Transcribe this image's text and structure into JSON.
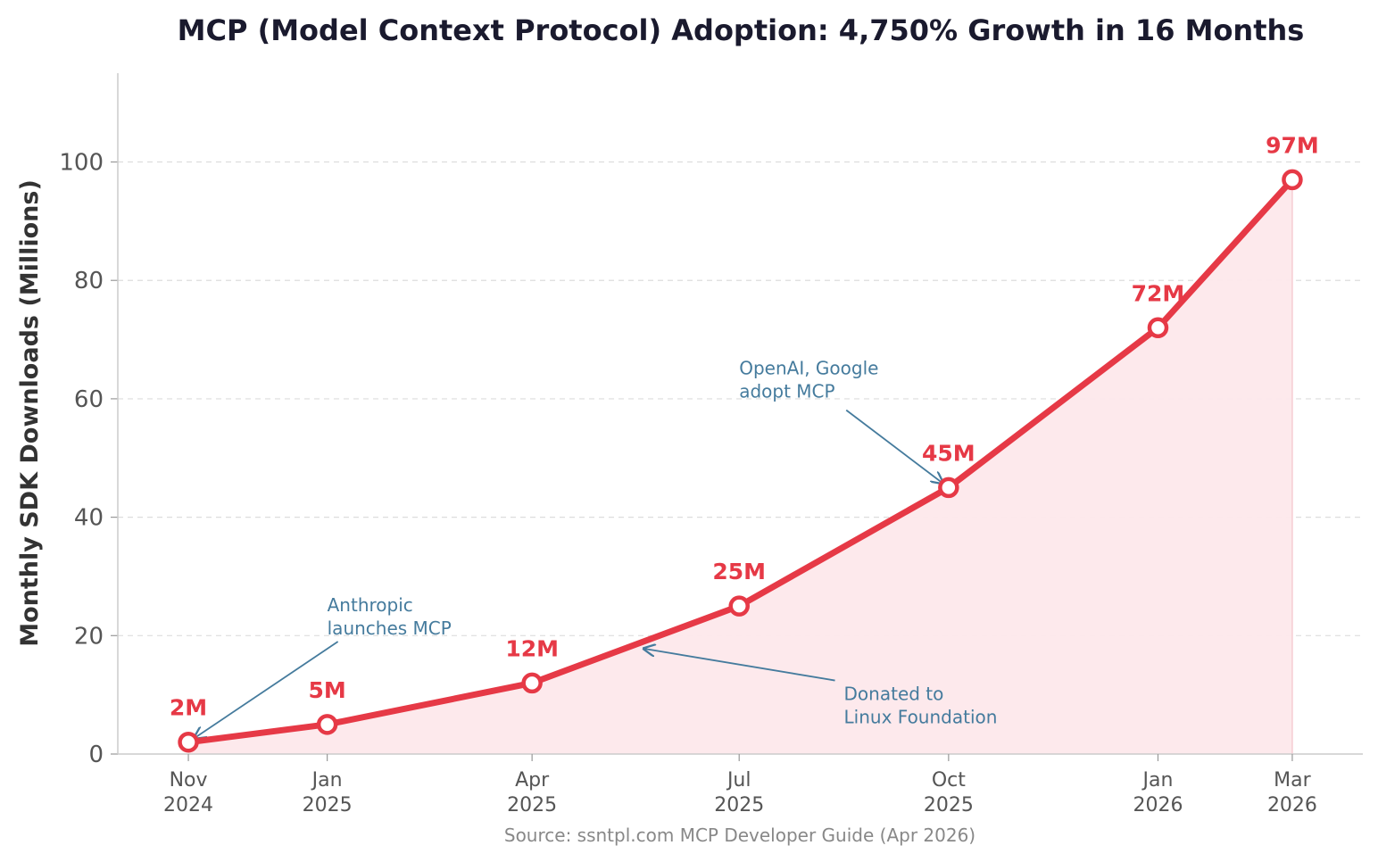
{
  "chart_data": {
    "type": "line",
    "title": "MCP (Model Context Protocol) Adoption: 4,750% Growth in 16 Months",
    "ylabel": "Monthly SDK Downloads (Millions)",
    "xlabel": "",
    "ylim": [
      0,
      115
    ],
    "yticks": [
      0,
      20,
      40,
      60,
      80,
      100
    ],
    "xlim": [
      "2024-10-01",
      "2026-04-01"
    ],
    "grid": "horizontal dashed",
    "color": "#e63946",
    "fill_color": "#fde8eb",
    "annotation_color": "#457b9d",
    "xticks": [
      {
        "date": "2024-11-01",
        "line1": "Nov",
        "line2": "2024"
      },
      {
        "date": "2025-01-01",
        "line1": "Jan",
        "line2": "2025"
      },
      {
        "date": "2025-04-01",
        "line1": "Apr",
        "line2": "2025"
      },
      {
        "date": "2025-07-01",
        "line1": "Jul",
        "line2": "2025"
      },
      {
        "date": "2025-10-01",
        "line1": "Oct",
        "line2": "2025"
      },
      {
        "date": "2026-01-01",
        "line1": "Jan",
        "line2": "2026"
      },
      {
        "date": "2026-03-01",
        "line1": "Mar",
        "line2": "2026"
      }
    ],
    "points": [
      {
        "date": "2024-11-01",
        "value": 2,
        "label": "2M"
      },
      {
        "date": "2025-01-01",
        "value": 5,
        "label": "5M"
      },
      {
        "date": "2025-04-01",
        "value": 12,
        "label": "12M"
      },
      {
        "date": "2025-07-01",
        "value": 25,
        "label": "25M"
      },
      {
        "date": "2025-10-01",
        "value": 45,
        "label": "45M"
      },
      {
        "date": "2026-01-01",
        "value": 72,
        "label": "72M"
      },
      {
        "date": "2026-03-01",
        "value": 97,
        "label": "97M"
      }
    ],
    "annotations": [
      {
        "lines": [
          "Anthropic",
          "launches MCP"
        ],
        "target_date": "2024-11-01",
        "target_value": 2,
        "text_date": "2025-01-01",
        "text_value": 22
      },
      {
        "lines": [
          "Donated to",
          "Linux Foundation"
        ],
        "target_date": "2025-05-17",
        "target_value": 18,
        "text_date": "2025-08-16",
        "text_value": 7
      },
      {
        "lines": [
          "OpenAI, Google",
          "adopt MCP"
        ],
        "target_date": "2025-10-01",
        "target_value": 45,
        "text_date": "2025-07-01",
        "text_value": 62
      }
    ],
    "source": "Source: ssntpl.com MCP Developer Guide (Apr 2026)"
  }
}
